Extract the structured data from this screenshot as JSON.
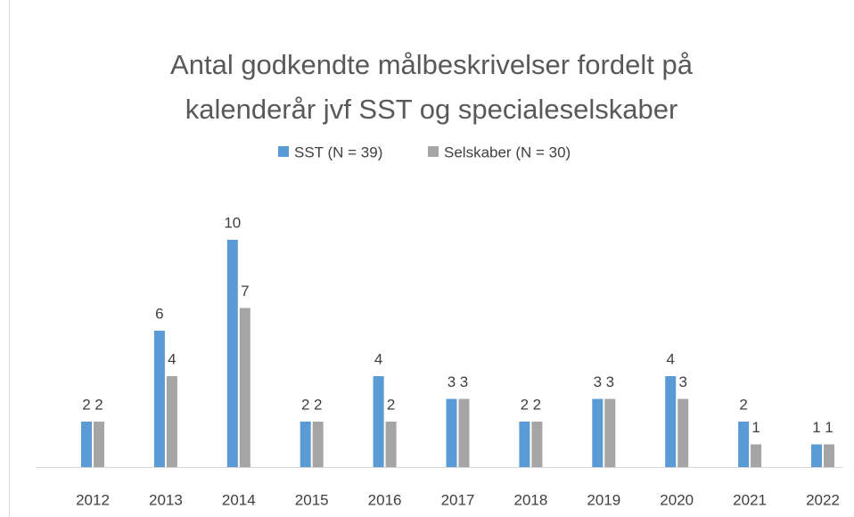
{
  "chart_data": {
    "type": "bar",
    "title": [
      "Antal godkendte målbeskrivelser fordelt på",
      "kalenderår jvf SST og specialeselskaber"
    ],
    "categories": [
      "2012",
      "2013",
      "2014",
      "2015",
      "2016",
      "2017",
      "2018",
      "2019",
      "2020",
      "2021",
      "2022"
    ],
    "series": [
      {
        "name": "SST (N = 39)",
        "color": "#5b9bd5",
        "values": [
          2,
          6,
          10,
          2,
          4,
          3,
          2,
          3,
          4,
          2,
          1
        ]
      },
      {
        "name": "Selskaber (N = 30)",
        "color": "#a5a5a5",
        "values": [
          2,
          4,
          7,
          2,
          2,
          3,
          2,
          3,
          3,
          1,
          1
        ]
      }
    ],
    "legend": "top"
  }
}
